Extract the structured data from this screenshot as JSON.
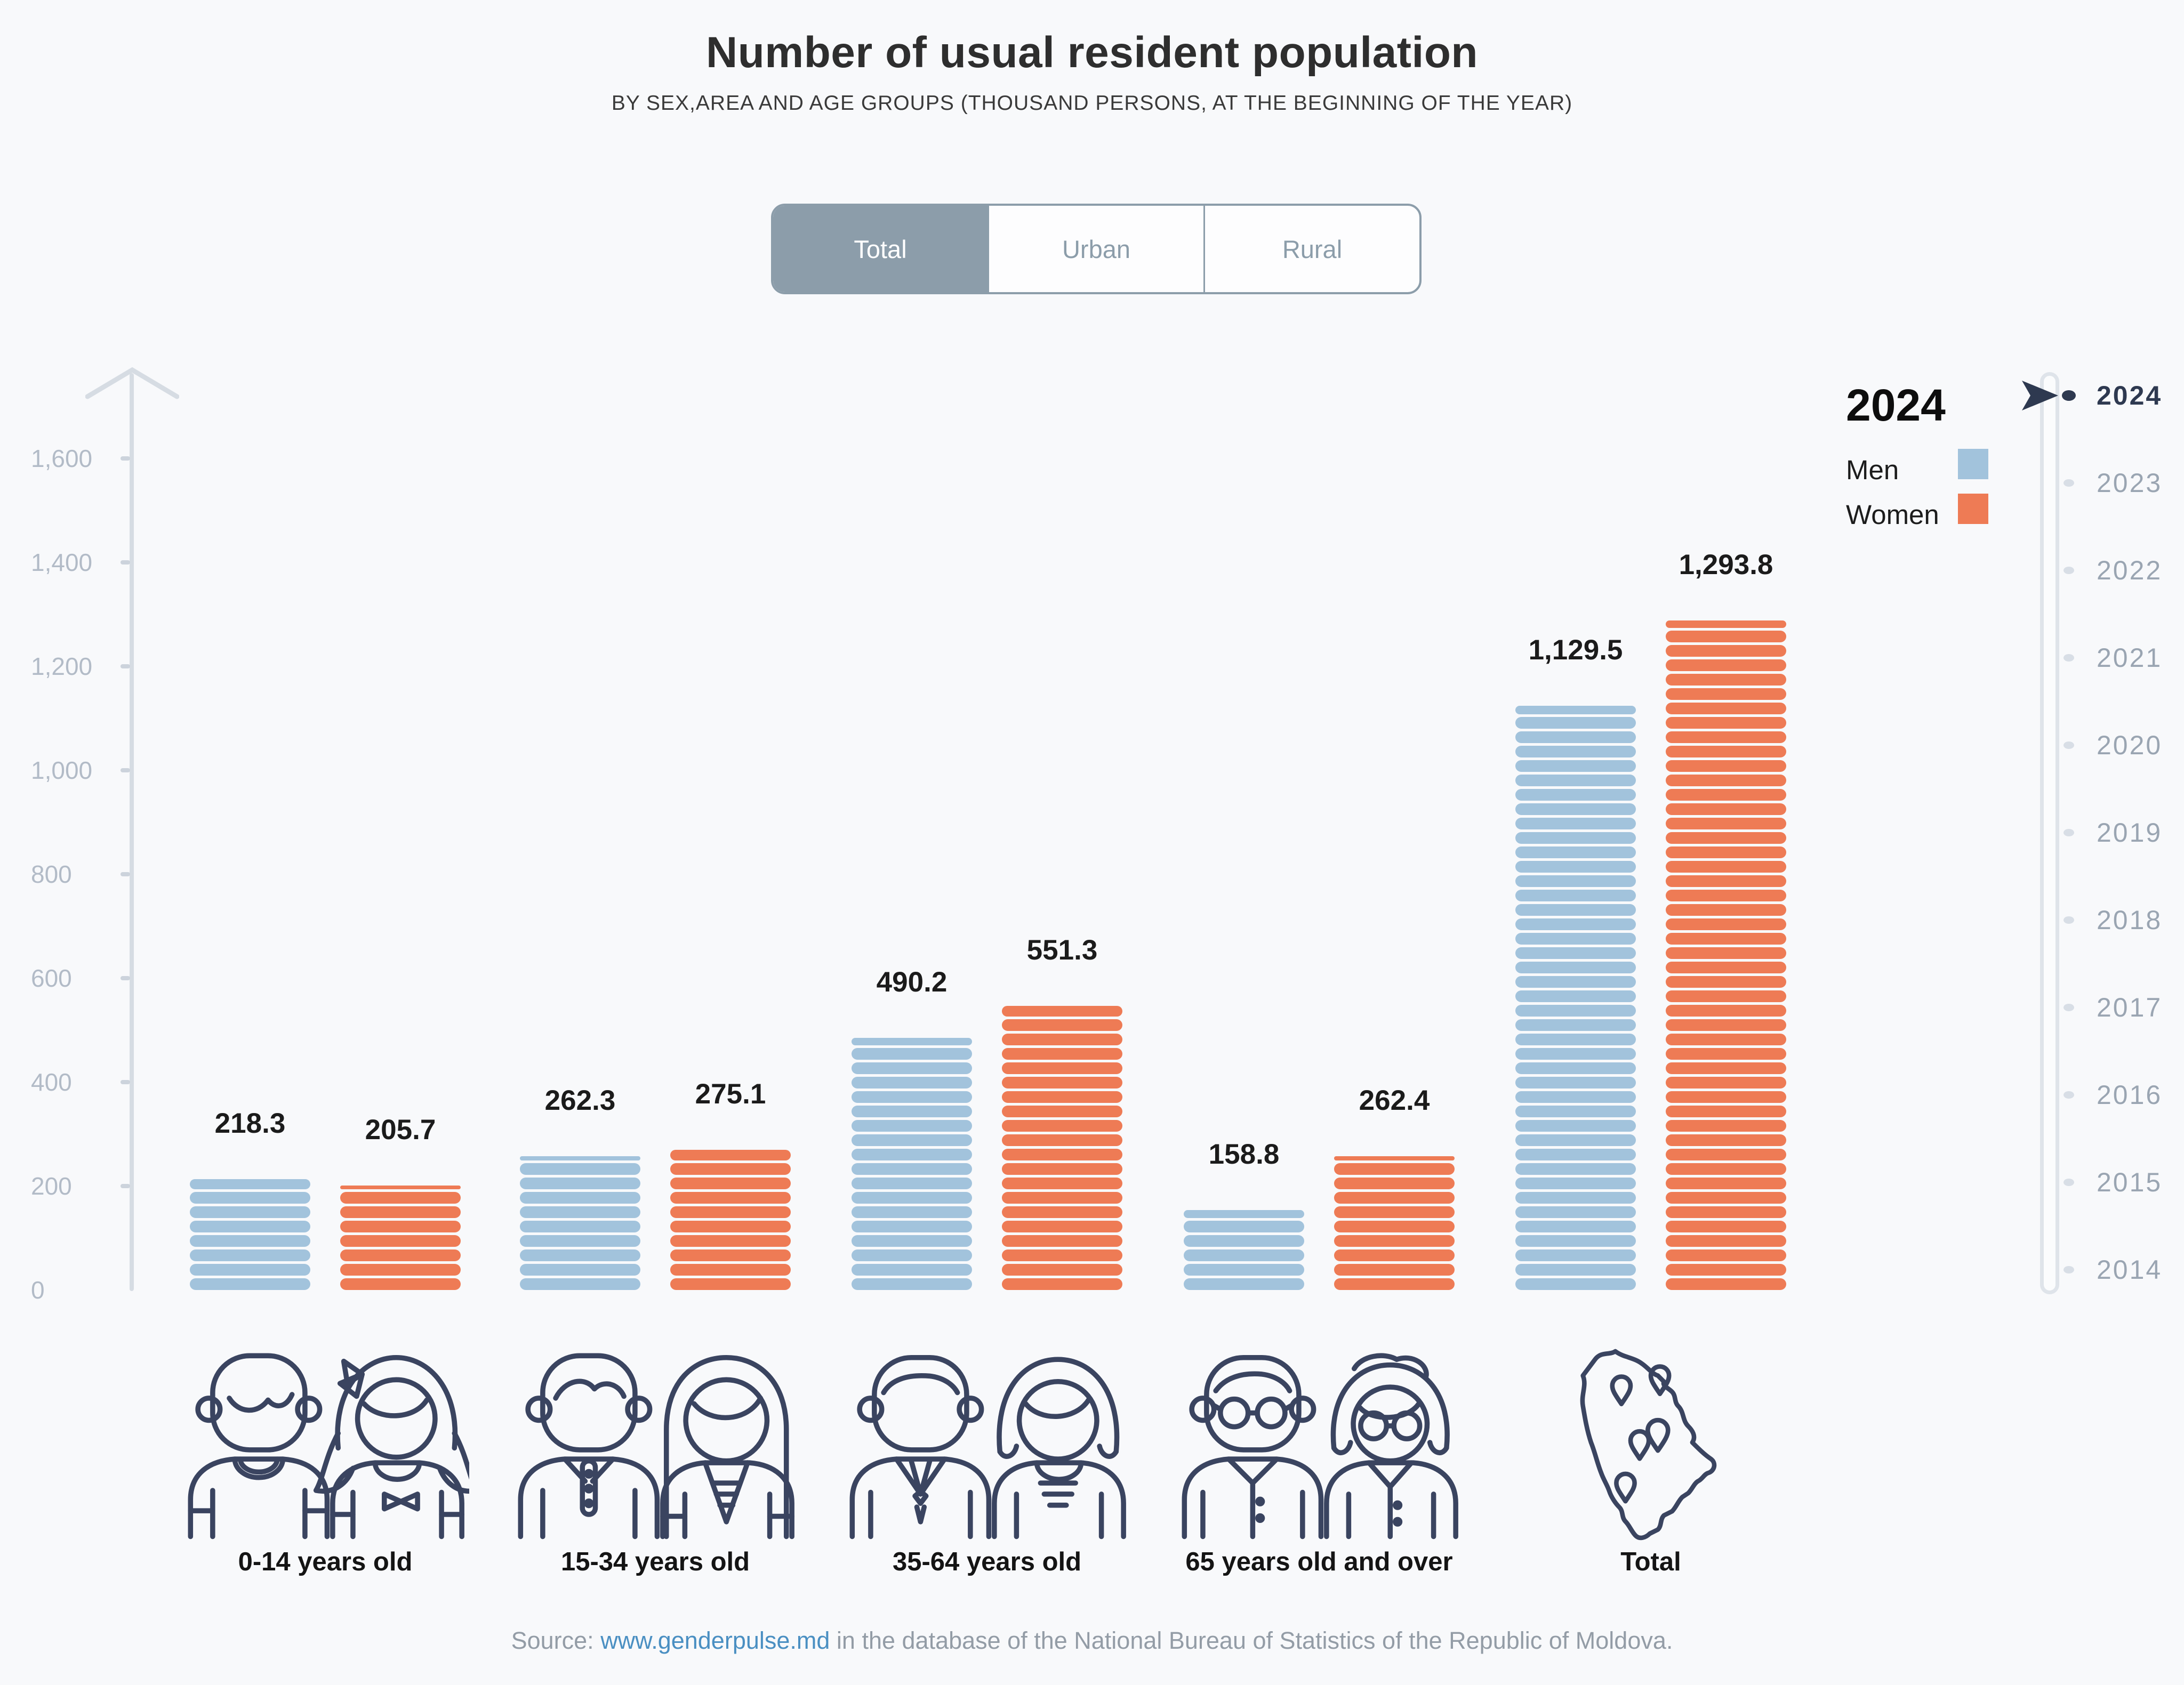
{
  "title": "Number of usual resident population",
  "subtitle": "BY SEX,AREA AND AGE GROUPS (THOUSAND PERSONS, AT THE BEGINNING OF THE YEAR)",
  "tabs": {
    "items": [
      {
        "label": "Total",
        "active": true
      },
      {
        "label": "Urban",
        "active": false
      },
      {
        "label": "Rural",
        "active": false
      }
    ]
  },
  "legend": {
    "year": "2024",
    "series": [
      {
        "label": "Men",
        "color": "#a2c3dc"
      },
      {
        "label": "Women",
        "color": "#ee7b55"
      }
    ]
  },
  "timeline": {
    "years": [
      "2024",
      "2023",
      "2022",
      "2021",
      "2020",
      "2019",
      "2018",
      "2017",
      "2016",
      "2015",
      "2014"
    ],
    "selected_year": "2024"
  },
  "y_axis": {
    "tick_labels": [
      "0",
      "200",
      "400",
      "600",
      "800",
      "1,000",
      "1,200",
      "1,400",
      "1,600"
    ],
    "tick_values": [
      0,
      200,
      400,
      600,
      800,
      1000,
      1200,
      1400,
      1600
    ]
  },
  "chart_data": {
    "type": "bar",
    "title": "Number of usual resident population",
    "subtitle": "By sex, area and age groups (thousand persons, at the beginning of the year)",
    "area_filter": "Total",
    "year": "2024",
    "categories": [
      "0-14 years old",
      "15-34 years old",
      "35-64 years old",
      "65 years old and over",
      "Total"
    ],
    "series": [
      {
        "name": "Men",
        "color": "#a2c3dc",
        "values": [
          218.3,
          262.3,
          490.2,
          158.8,
          1129.5
        ],
        "labels": [
          "218.3",
          "262.3",
          "490.2",
          "158.8",
          "1,129.5"
        ]
      },
      {
        "name": "Women",
        "color": "#ee7b55",
        "values": [
          205.7,
          275.1,
          551.3,
          262.4,
          1293.8
        ],
        "labels": [
          "205.7",
          "275.1",
          "551.3",
          "262.4",
          "1,293.8"
        ]
      }
    ],
    "ylabel": "thousand persons",
    "ylim": [
      0,
      1600
    ],
    "grid": false,
    "legend_position": "top-right"
  },
  "source": {
    "prefix": "Source: ",
    "link_text": "www.genderpulse.md",
    "suffix": " in the database of the National Bureau of Statistics of the Republic of Moldova."
  }
}
